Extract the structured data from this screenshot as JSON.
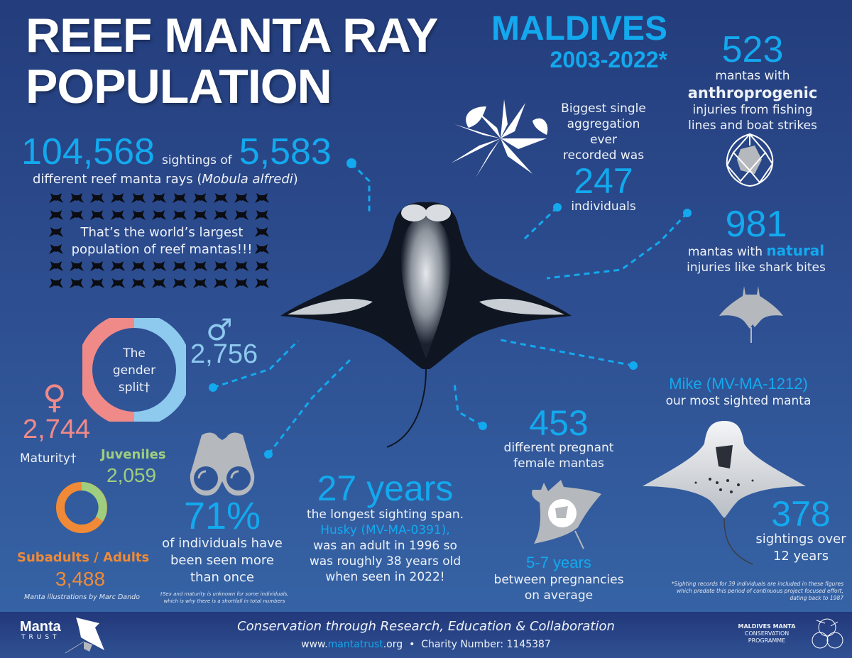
{
  "header": {
    "title_line1": "REEF MANTA RAY",
    "title_line2": "POPULATION",
    "region": "MALDIVES",
    "period": "2003-2022*"
  },
  "sightings": {
    "total_sightings": "104,568",
    "connector": "sightings of",
    "individuals": "5,583",
    "description_prefix": "different reef manta rays (",
    "species": "Mobula alfredi",
    "description_suffix": ")",
    "grid_text_line1": "That’s the world’s largest",
    "grid_text_line2": "population of reef mantas!!!"
  },
  "aggregation": {
    "line1": "Biggest single",
    "line2": "aggregation ever",
    "line3": "recorded was",
    "value": "247",
    "unit": "individuals"
  },
  "anthropogenic": {
    "value": "523",
    "line1": "mantas with",
    "highlight": "anthroprogenic",
    "line2": "injuries from fishing",
    "line3": "lines and boat strikes"
  },
  "natural": {
    "value": "981",
    "line1_prefix": "mantas with ",
    "highlight": "natural",
    "line2": "injuries like shark bites"
  },
  "gender": {
    "center_line1": "The",
    "center_line2": "gender",
    "center_line3": "split†",
    "male_symbol": "♂",
    "male_count": "2,756",
    "female_symbol": "♀",
    "female_count": "2,744",
    "colors": {
      "male": "#8ec9ee",
      "female": "#f08a88"
    }
  },
  "maturity": {
    "label": "Maturity†",
    "juveniles_label": "Juveniles",
    "juveniles_count": "2,059",
    "adults_label": "Subadults / Adults",
    "adults_count": "3,488",
    "colors": {
      "juveniles": "#9fce7f",
      "adults": "#f08a36"
    }
  },
  "resighting": {
    "value": "71%",
    "line1": "of individuals have",
    "line2": "been seen more",
    "line3": "than once"
  },
  "longest_span": {
    "value": "27 years",
    "line1": "the longest sighting span.",
    "line2": "Husky (MV-MA-0391),",
    "line3": "was an adult in 1996 so",
    "line4": "was roughly 38 years old",
    "line5": "when seen in 2022!"
  },
  "pregnancy": {
    "value": "453",
    "line1": "different pregnant",
    "line2": "female mantas",
    "interval": "5-7 years",
    "line3": "between pregnancies",
    "line4": "on average"
  },
  "most_sighted": {
    "name": "Mike (MV-MA-1212)",
    "subtitle": "our most sighted manta",
    "value": "378",
    "line1": "sightings over",
    "line2": "12 years"
  },
  "notes": {
    "credit": "Manta illustrations by Marc Dando",
    "dagger_line1": "†Sex and maturity is unknown for some individuals,",
    "dagger_line2": "which is why there is a shortfall in total numbers",
    "asterisk_line1": "*Sighting records for 39 individuals are included in these figures",
    "asterisk_line2": "which predate this period of continuous project focused effort,",
    "asterisk_line3": "dating back to 1987"
  },
  "footer": {
    "logo_main": "Manta",
    "logo_sub": "TRUST",
    "tagline": "Conservation through Research, Education & Collaboration",
    "url_prefix": "www.",
    "url_highlight": "mantatrust",
    "url_suffix": ".org",
    "separator": "•",
    "charity": "Charity Number: 1145387",
    "partner_line1": "MALDIVES MANTA",
    "partner_line2": "CONSERVATION",
    "partner_line3": "PROGRAMME"
  },
  "chart_data": [
    {
      "type": "pie",
      "title": "The gender split†",
      "categories": [
        "Female",
        "Male"
      ],
      "values": [
        2744,
        2756
      ],
      "colors": [
        "#f08a88",
        "#8ec9ee"
      ]
    },
    {
      "type": "pie",
      "title": "Maturity†",
      "categories": [
        "Juveniles",
        "Subadults / Adults"
      ],
      "values": [
        2059,
        3488
      ],
      "colors": [
        "#9fce7f",
        "#f08a36"
      ]
    }
  ],
  "colors": {
    "accent": "#13a9ee",
    "background_top": "#243d7c",
    "background_bottom": "#3766a8"
  }
}
